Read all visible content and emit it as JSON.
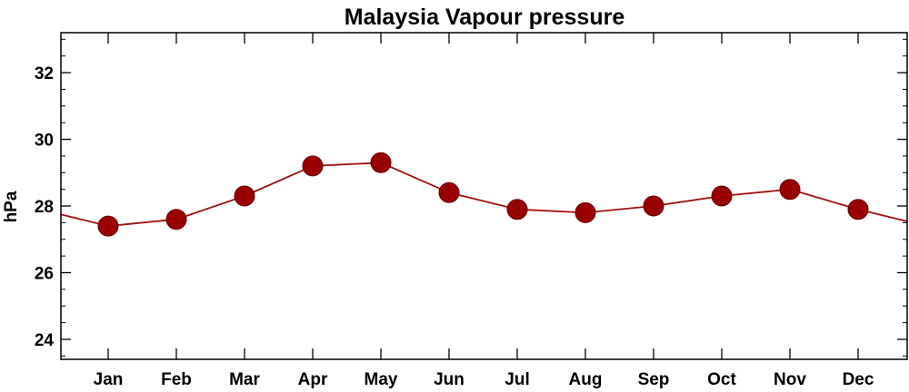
{
  "chart_data": {
    "type": "line",
    "title": "Malaysia Vapour pressure",
    "xlabel": "",
    "ylabel": "hPa",
    "categories": [
      "Jan",
      "Feb",
      "Mar",
      "Apr",
      "May",
      "Jun",
      "Jul",
      "Aug",
      "Sep",
      "Oct",
      "Nov",
      "Dec"
    ],
    "values": [
      27.4,
      27.6,
      28.3,
      29.2,
      29.3,
      28.4,
      27.9,
      27.8,
      28.0,
      28.3,
      28.5,
      27.9
    ],
    "ylim": [
      23.4,
      33.2
    ],
    "yticks": [
      24,
      26,
      28,
      30,
      32
    ],
    "ytick_labels": [
      "24",
      "26",
      "28",
      "30",
      "32"
    ],
    "y_minor_step": 0.5,
    "line_color": "#a01010",
    "marker_color": "#990000",
    "marker_edge_color": "#660000",
    "grid": false,
    "legend": "none"
  }
}
